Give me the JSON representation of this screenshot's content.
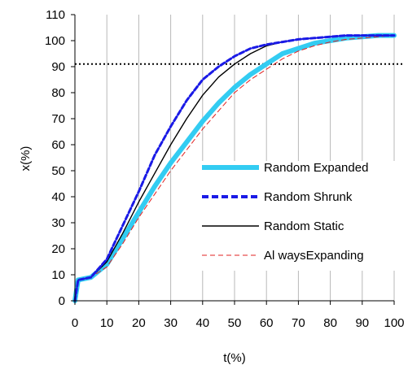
{
  "chart_data": {
    "type": "line",
    "xlabel": "t(%)",
    "ylabel": "x(%)",
    "xlim": [
      0,
      100
    ],
    "ylim": [
      0,
      110
    ],
    "x_ticks": [
      0,
      10,
      20,
      30,
      40,
      50,
      60,
      70,
      80,
      90,
      100
    ],
    "y_ticks": [
      0,
      10,
      20,
      30,
      40,
      50,
      60,
      70,
      80,
      90,
      100,
      110
    ],
    "grid": "vertical",
    "reference_line": {
      "y": 91,
      "style": "dotted"
    },
    "legend_placement": "right",
    "series": [
      {
        "name": "Random Expanded",
        "color": "#33ccf2",
        "style": "thick-solid",
        "x": [
          0,
          1,
          5,
          10,
          15,
          20,
          25,
          30,
          35,
          40,
          45,
          50,
          55,
          60,
          65,
          70,
          75,
          80,
          85,
          90,
          95,
          100
        ],
        "y": [
          0,
          8,
          9,
          14,
          24,
          34,
          44,
          53,
          61,
          69,
          76,
          82,
          87,
          91,
          95,
          97,
          99,
          100,
          101,
          101.5,
          102,
          102
        ]
      },
      {
        "name": "Random Shrunk",
        "color": "#1a1ae6",
        "style": "dashed-thick",
        "x": [
          0,
          1,
          5,
          10,
          15,
          20,
          25,
          30,
          35,
          40,
          45,
          50,
          55,
          60,
          65,
          70,
          75,
          80,
          85,
          90,
          95,
          100
        ],
        "y": [
          0,
          8,
          9,
          16,
          29,
          42,
          56,
          67,
          77,
          85,
          90,
          94,
          97,
          98.5,
          99.5,
          100.5,
          101,
          101.5,
          102,
          102,
          102,
          102
        ]
      },
      {
        "name": "Random Static",
        "color": "#000000",
        "style": "thin-solid",
        "x": [
          0,
          1,
          5,
          10,
          15,
          20,
          25,
          30,
          35,
          40,
          45,
          50,
          55,
          60,
          65,
          70,
          75,
          80,
          85,
          90,
          95,
          100
        ],
        "y": [
          0,
          8,
          9,
          15,
          26,
          38,
          49,
          60,
          70,
          79,
          86,
          91,
          95,
          98,
          99.5,
          100.5,
          101,
          101.5,
          102,
          102,
          102,
          102
        ]
      },
      {
        "name": "AlwaysExpanding",
        "color": "#e02020",
        "style": "thin-dashed",
        "x": [
          0,
          1,
          5,
          10,
          15,
          20,
          25,
          30,
          35,
          40,
          45,
          50,
          55,
          60,
          65,
          70,
          75,
          80,
          85,
          90,
          95,
          100
        ],
        "y": [
          0,
          8,
          9,
          13,
          22,
          32,
          41,
          50,
          58,
          66,
          73,
          80,
          85,
          89,
          93,
          96,
          98,
          99.5,
          100.5,
          101,
          101.5,
          102
        ]
      }
    ],
    "legend_labels": {
      "random_expanded": "Random Expanded",
      "random_shrunk": "Random Shrunk",
      "random_static": "Random Static",
      "always_expanding": "Al waysExpanding"
    }
  }
}
